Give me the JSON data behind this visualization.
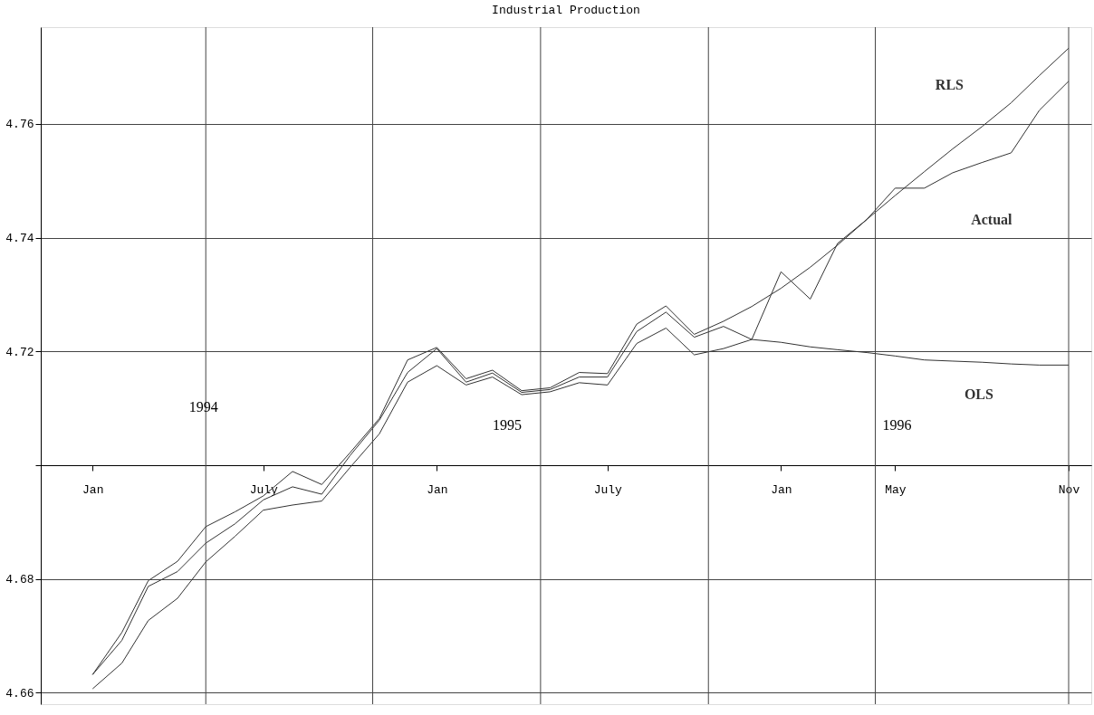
{
  "chart_data": {
    "type": "line",
    "title": "Industrial Production",
    "x": [
      "1994-01",
      "1994-02",
      "1994-03",
      "1994-04",
      "1994-05",
      "1994-06",
      "1994-07",
      "1994-08",
      "1994-09",
      "1994-10",
      "1994-11",
      "1994-12",
      "1995-01",
      "1995-02",
      "1995-03",
      "1995-04",
      "1995-05",
      "1995-06",
      "1995-07",
      "1995-08",
      "1995-09",
      "1995-10",
      "1995-11",
      "1995-12",
      "1996-01",
      "1996-02",
      "1996-03",
      "1996-04",
      "1996-05",
      "1996-06",
      "1996-07",
      "1996-08",
      "1996-09",
      "1996-10",
      "1996-11"
    ],
    "series": [
      {
        "name": "Actual",
        "color": "#333333",
        "values": [
          4.6632,
          4.6692,
          4.6787,
          4.6813,
          4.6863,
          4.6897,
          4.6939,
          4.6962,
          4.6949,
          4.7017,
          4.7079,
          4.7163,
          4.7205,
          4.7146,
          4.7162,
          4.7128,
          4.7133,
          4.7155,
          4.7155,
          4.7235,
          4.7269,
          4.7225,
          4.7244,
          4.7221,
          4.734,
          4.7292,
          4.739,
          4.7432,
          4.7487,
          4.7487,
          4.7514,
          4.7532,
          4.7549,
          4.7624,
          4.7675
        ]
      },
      {
        "name": "RLS",
        "color": "#333333",
        "values": [
          4.6632,
          4.6706,
          4.6797,
          4.6831,
          4.6892,
          4.6918,
          4.6946,
          4.6989,
          4.6966,
          4.7022,
          4.7082,
          4.7185,
          4.7207,
          4.7152,
          4.7167,
          4.7131,
          4.7136,
          4.7163,
          4.7161,
          4.7248,
          4.728,
          4.723,
          4.7253,
          4.7279,
          4.7311,
          4.7348,
          4.7387,
          4.7432,
          4.7474,
          4.7516,
          4.7556,
          4.7595,
          4.7637,
          4.7685,
          4.7733
        ]
      },
      {
        "name": "OLS",
        "color": "#333333",
        "values": [
          4.6607,
          4.6652,
          4.6727,
          4.6766,
          4.683,
          4.6875,
          4.6921,
          4.693,
          4.6937,
          4.6996,
          4.7055,
          4.7146,
          4.7175,
          4.7141,
          4.7155,
          4.7124,
          4.7129,
          4.7145,
          4.7141,
          4.7214,
          4.7241,
          4.7194,
          4.7205,
          4.7221,
          4.7216,
          4.7208,
          4.7203,
          4.7198,
          4.7192,
          4.7185,
          4.7183,
          4.7181,
          4.7178,
          4.7176,
          4.7176
        ]
      }
    ],
    "xlim": [
      "1993-11-07",
      "1996-11-25"
    ],
    "xticks": [
      {
        "value": "1994-01",
        "label": "Jan"
      },
      {
        "value": "1994-07",
        "label": "July"
      },
      {
        "value": "1995-01",
        "label": "Jan"
      },
      {
        "value": "1995-07",
        "label": "July"
      },
      {
        "value": "1996-01",
        "label": "Jan"
      },
      {
        "value": "1996-05",
        "label": "May"
      },
      {
        "value": "1996-11",
        "label": "Nov"
      },
      {
        "value": "1994-05-01",
        "label": null
      },
      {
        "value": "1994-10-25",
        "label": null
      },
      {
        "value": "1995-04-21",
        "label": null
      },
      {
        "value": "1995-10-16",
        "label": null
      },
      {
        "value": "1996-04-10",
        "label": null
      },
      {
        "value": "1996-11-01",
        "label": null
      }
    ],
    "ylim": [
      4.658,
      4.777
    ],
    "yticks": [
      4.66,
      4.68,
      {
        "value": 4.7,
        "label": null
      },
      4.72,
      4.74,
      4.76
    ],
    "grid": true,
    "annotations": [
      "1994",
      "1995",
      "1996"
    ]
  }
}
